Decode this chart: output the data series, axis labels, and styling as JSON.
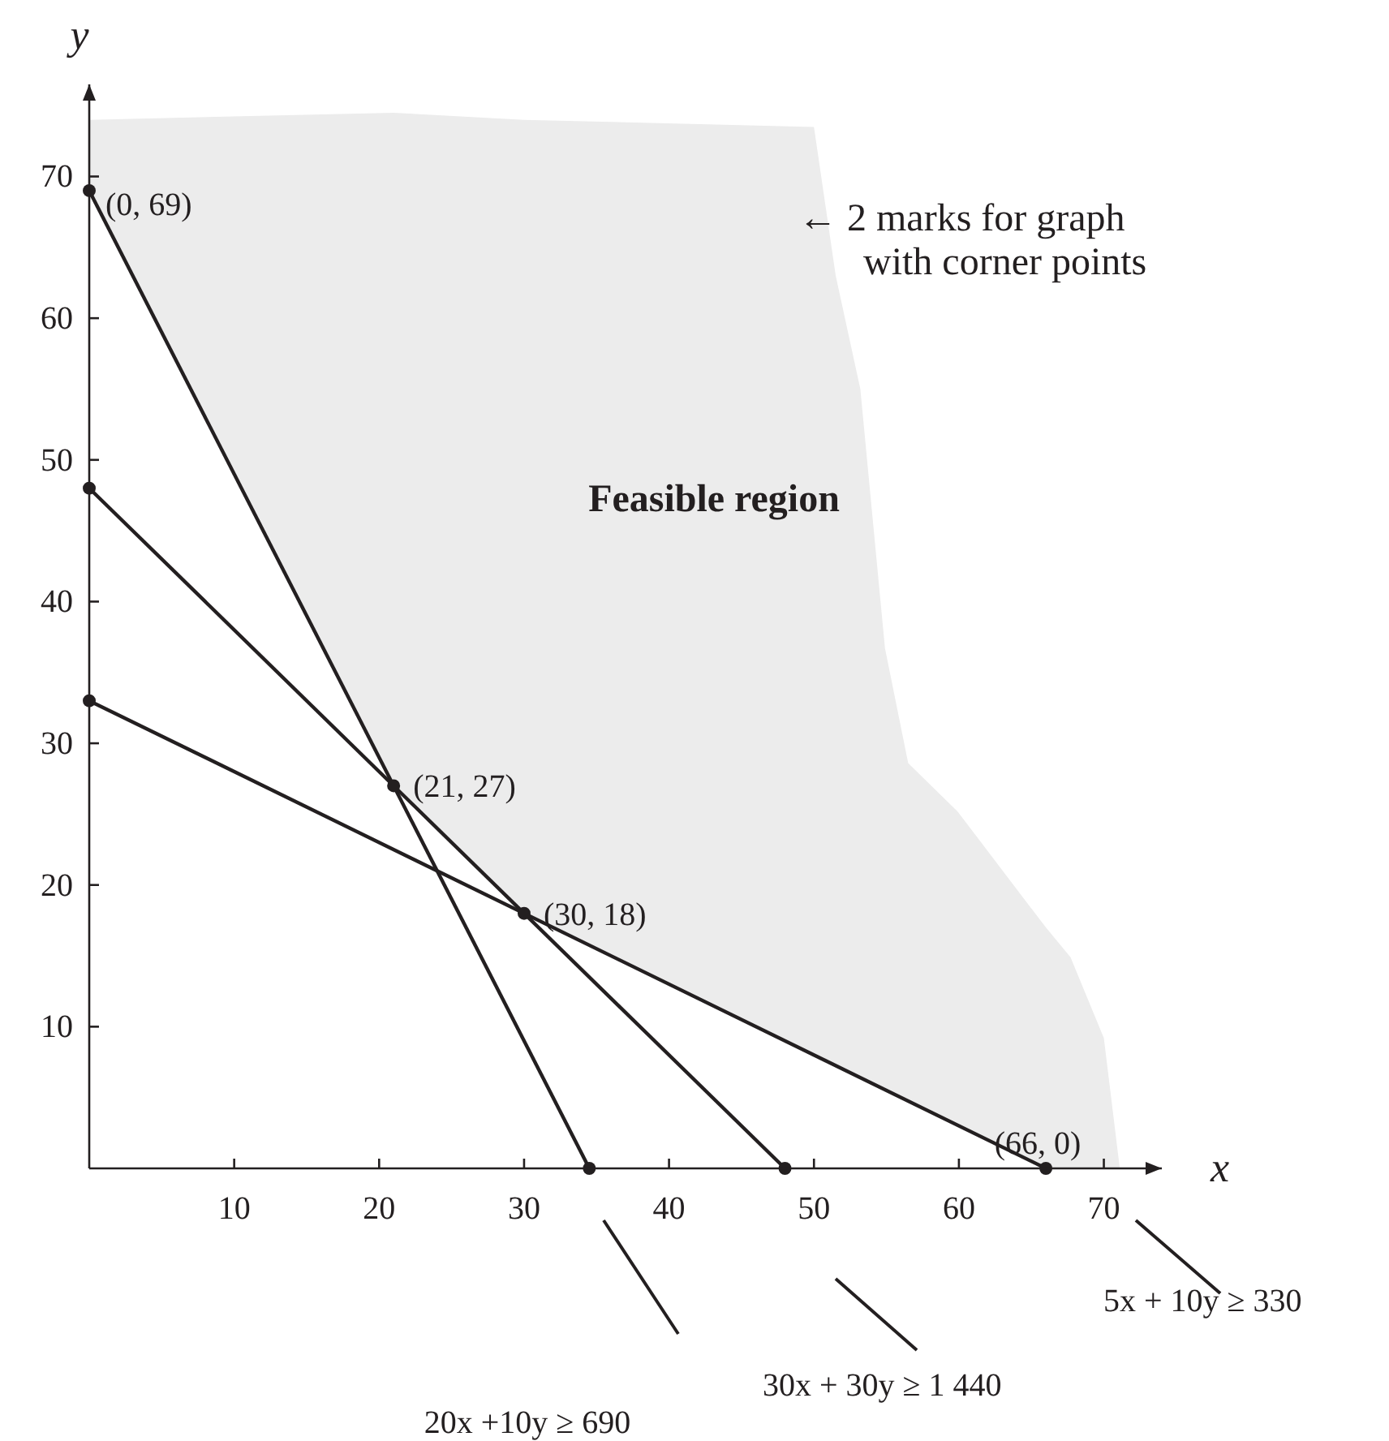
{
  "chart_data": {
    "type": "line",
    "xlabel": "x",
    "ylabel": "y",
    "xlim": [
      0,
      74
    ],
    "ylim": [
      0,
      76.5
    ],
    "xticks": [
      10,
      20,
      30,
      40,
      50,
      60,
      70
    ],
    "yticks": [
      10,
      20,
      30,
      40,
      50,
      60,
      70
    ],
    "marker": "circle",
    "line_style": "solid",
    "series": [
      {
        "type": "area",
        "marker": "none",
        "color": "#ececec",
        "x": [
          0,
          21,
          30,
          50,
          51.5,
          53.2,
          54.9,
          56.5,
          59.9,
          66,
          67.7,
          70,
          71.1
        ],
        "values": [
          74,
          74.5,
          74,
          73.5,
          63,
          55,
          36.7,
          28.6,
          25.2,
          17,
          14.9,
          9.2,
          0
        ]
      },
      {
        "color": "#231f20",
        "x": [
          0,
          34.5
        ],
        "values": [
          69,
          0
        ]
      },
      {
        "color": "#231f20",
        "x": [
          0,
          48
        ],
        "values": [
          48,
          0
        ]
      },
      {
        "color": "#231f20",
        "x": [
          0,
          66
        ],
        "values": [
          33,
          0
        ]
      },
      {
        "type": "scatter",
        "color": "#231f20",
        "x": [
          21,
          30
        ],
        "values": [
          27,
          18
        ]
      }
    ],
    "annotations": [
      {
        "text": "(0, 69)",
        "x": 0,
        "y": 69
      },
      {
        "text": "(21, 27)",
        "x": 21,
        "y": 27
      },
      {
        "text": "(30, 18)",
        "x": 30,
        "y": 18
      },
      {
        "text": "(66, 0)",
        "x": 66,
        "y": 0
      },
      "Feasible region",
      "← 2 marks for graph with corner points",
      "20x +10y ≥ 690",
      "30x + 30y ≥ 1 440",
      "5x + 10y ≥ 330"
    ]
  }
}
